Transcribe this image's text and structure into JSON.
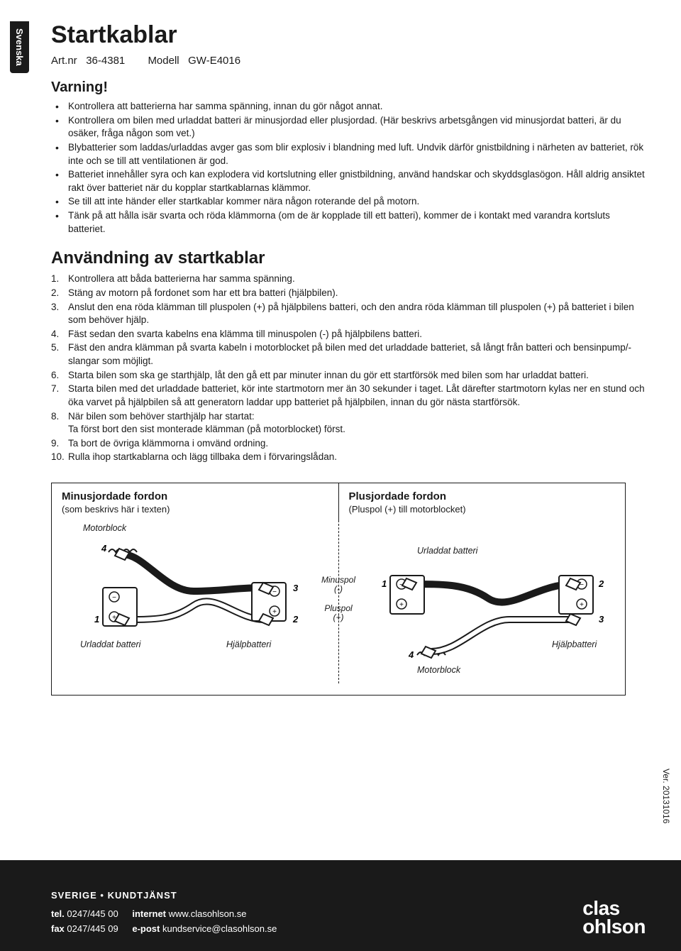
{
  "lang_tab": "Svenska",
  "title": "Startkablar",
  "meta": {
    "art_label": "Art.nr",
    "art_value": "36-4381",
    "model_label": "Modell",
    "model_value": "GW-E4016"
  },
  "warning_heading": "Varning!",
  "warnings": [
    "Kontrollera att batterierna har samma spänning, innan du gör något annat.",
    "Kontrollera om bilen med urladdat batteri är minusjordad eller plusjordad. (Här beskrivs arbetsgången vid minusjordat batteri, är du osäker, fråga någon som vet.)",
    "Blybatterier som laddas/urladdas avger gas som blir explosiv i blandning med luft. Undvik därför gnistbildning i närheten av batteriet, rök inte och se till att ventilationen är god.",
    "Batteriet innehåller syra och kan explodera vid kortslutning eller gnistbildning, använd handskar och skyddsglasögon. Håll aldrig ansiktet rakt över batteriet när du kopplar startkablarnas klämmor.",
    "Se till att inte händer eller startkablar kommer nära någon roterande del på motorn.",
    "Tänk på att hålla isär svarta och röda klämmorna (om de är kopplade till ett batteri), kommer de i kontakt med varandra kortsluts batteriet."
  ],
  "usage_heading": "Användning av startkablar",
  "steps": [
    "Kontrollera att båda batterierna har samma spänning.",
    "Stäng av motorn på fordonet som har ett bra batteri (hjälpbilen).",
    "Anslut den ena röda klämman till pluspolen (+) på hjälpbilens batteri, och den andra röda klämman till pluspolen (+) på batteriet i bilen som behöver hjälp.",
    "Fäst sedan den svarta kabelns ena klämma till minuspolen (-) på hjälpbilens batteri.",
    "Fäst den andra klämman på svarta kabeln i motorblocket på bilen med det urladdade batteriet, så långt från batteri och bensinpump/-slangar som möjligt.",
    "Starta bilen som ska ge starthjälp, låt den gå ett par minuter innan du gör ett startförsök med bilen som har urladdat batteri.",
    "Starta bilen med det urladdade batteriet, kör inte startmotorn mer än 30 sekunder i taget. Låt därefter startmotorn kylas ner en stund och öka varvet på hjälpbilen så att generatorn laddar upp batteriet på hjälpbilen, innan du gör nästa startförsök.",
    "När bilen som behöver starthjälp har startat:\nTa först bort den sist monterade klämman (på motorblocket) först.",
    "Ta bort de övriga klämmorna i omvänd ordning.",
    "Rulla ihop startkablarna och lägg tillbaka dem i förvaringslådan."
  ],
  "diagram": {
    "left": {
      "title": "Minusjordade fordon",
      "subtitle": "(som beskrivs här i texten)",
      "labels": {
        "motorblock": "Motorblock",
        "urladdat": "Urladdat batteri",
        "hjalp": "Hjälpbatteri"
      },
      "nums": [
        "4",
        "3",
        "1",
        "2"
      ]
    },
    "center": {
      "minus": "Minuspol",
      "minus_sign": "(-)",
      "plus": "Pluspol",
      "plus_sign": "(+)"
    },
    "right": {
      "title": "Plusjordade fordon",
      "subtitle": "(Pluspol (+) till motorblocket)",
      "labels": {
        "motorblock": "Motorblock",
        "urladdat": "Urladdat batteri",
        "hjalp": "Hjälpbatteri"
      },
      "nums": [
        "1",
        "2",
        "4",
        "3"
      ]
    }
  },
  "version": "Ver. 20131016",
  "footer": {
    "title": "SVERIGE • KUNDTJÄNST",
    "tel_label": "tel.",
    "tel": "0247/445 00",
    "fax_label": "fax",
    "fax": "0247/445 09",
    "internet_label": "internet",
    "internet": "www.clasohlson.se",
    "email_label": "e-post",
    "email": "kundservice@clasohlson.se",
    "logo1": "clas",
    "logo2": "ohlson"
  },
  "colors": {
    "text": "#1a1a1a",
    "bg": "#ffffff",
    "footer_bg": "#1a1a1a",
    "footer_text": "#ffffff"
  }
}
